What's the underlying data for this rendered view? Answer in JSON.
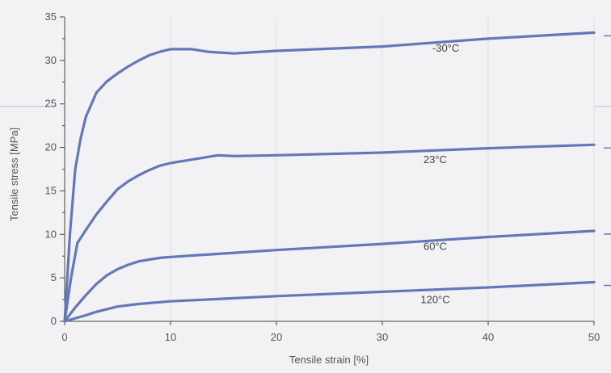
{
  "chart_data": {
    "type": "line",
    "title": "",
    "xlabel": "Tensile strain [%]",
    "ylabel": "Tensile stress [MPa]",
    "xlim": [
      0,
      50
    ],
    "ylim": [
      0,
      35
    ],
    "xticks": [
      0,
      10,
      20,
      30,
      40,
      50
    ],
    "yticks": [
      0,
      5,
      10,
      15,
      20,
      25,
      30,
      35
    ],
    "grid": true,
    "colors": {
      "line": "#6478b8",
      "grid": "#e0e0e4",
      "axis": "#444444",
      "background": "#f2f2f4",
      "accent": "#c8d0e4"
    },
    "series": [
      {
        "name": "-30°C",
        "label_at": [
          36,
          31.0
        ],
        "points": [
          [
            0,
            0
          ],
          [
            0.5,
            10
          ],
          [
            1,
            17.5
          ],
          [
            1.5,
            21
          ],
          [
            2,
            23.5
          ],
          [
            3,
            26.3
          ],
          [
            4,
            27.6
          ],
          [
            5,
            28.5
          ],
          [
            6,
            29.3
          ],
          [
            7,
            30
          ],
          [
            8,
            30.6
          ],
          [
            9,
            31
          ],
          [
            10,
            31.3
          ],
          [
            12,
            31.3
          ],
          [
            13.5,
            31
          ],
          [
            16,
            30.8
          ],
          [
            20,
            31.1
          ],
          [
            30,
            31.6
          ],
          [
            40,
            32.5
          ],
          [
            50,
            33.2
          ]
        ]
      },
      {
        "name": "23°C",
        "label_at": [
          35,
          18.2
        ],
        "points": [
          [
            0,
            0
          ],
          [
            0.6,
            5
          ],
          [
            1.2,
            9
          ],
          [
            2,
            10.5
          ],
          [
            3,
            12.3
          ],
          [
            4,
            13.8
          ],
          [
            5,
            15.2
          ],
          [
            6,
            16.1
          ],
          [
            7,
            16.8
          ],
          [
            8,
            17.4
          ],
          [
            9,
            17.9
          ],
          [
            10,
            18.2
          ],
          [
            12,
            18.6
          ],
          [
            14.5,
            19.1
          ],
          [
            16,
            19
          ],
          [
            20,
            19.1
          ],
          [
            30,
            19.4
          ],
          [
            40,
            19.9
          ],
          [
            50,
            20.3
          ]
        ]
      },
      {
        "name": "60°C",
        "label_at": [
          35,
          8.2
        ],
        "points": [
          [
            0,
            0
          ],
          [
            1,
            1.6
          ],
          [
            2,
            3
          ],
          [
            3,
            4.3
          ],
          [
            4,
            5.3
          ],
          [
            5,
            6
          ],
          [
            6,
            6.5
          ],
          [
            7,
            6.9
          ],
          [
            8,
            7.1
          ],
          [
            9,
            7.3
          ],
          [
            10,
            7.4
          ],
          [
            15,
            7.8
          ],
          [
            20,
            8.2
          ],
          [
            30,
            8.9
          ],
          [
            40,
            9.7
          ],
          [
            50,
            10.4
          ]
        ]
      },
      {
        "name": "120°C",
        "label_at": [
          35,
          2.1
        ],
        "points": [
          [
            0,
            0
          ],
          [
            2,
            0.7
          ],
          [
            3,
            1.1
          ],
          [
            5,
            1.7
          ],
          [
            7,
            2
          ],
          [
            10,
            2.3
          ],
          [
            15,
            2.6
          ],
          [
            20,
            2.9
          ],
          [
            30,
            3.4
          ],
          [
            40,
            3.9
          ],
          [
            50,
            4.5
          ]
        ]
      }
    ]
  }
}
